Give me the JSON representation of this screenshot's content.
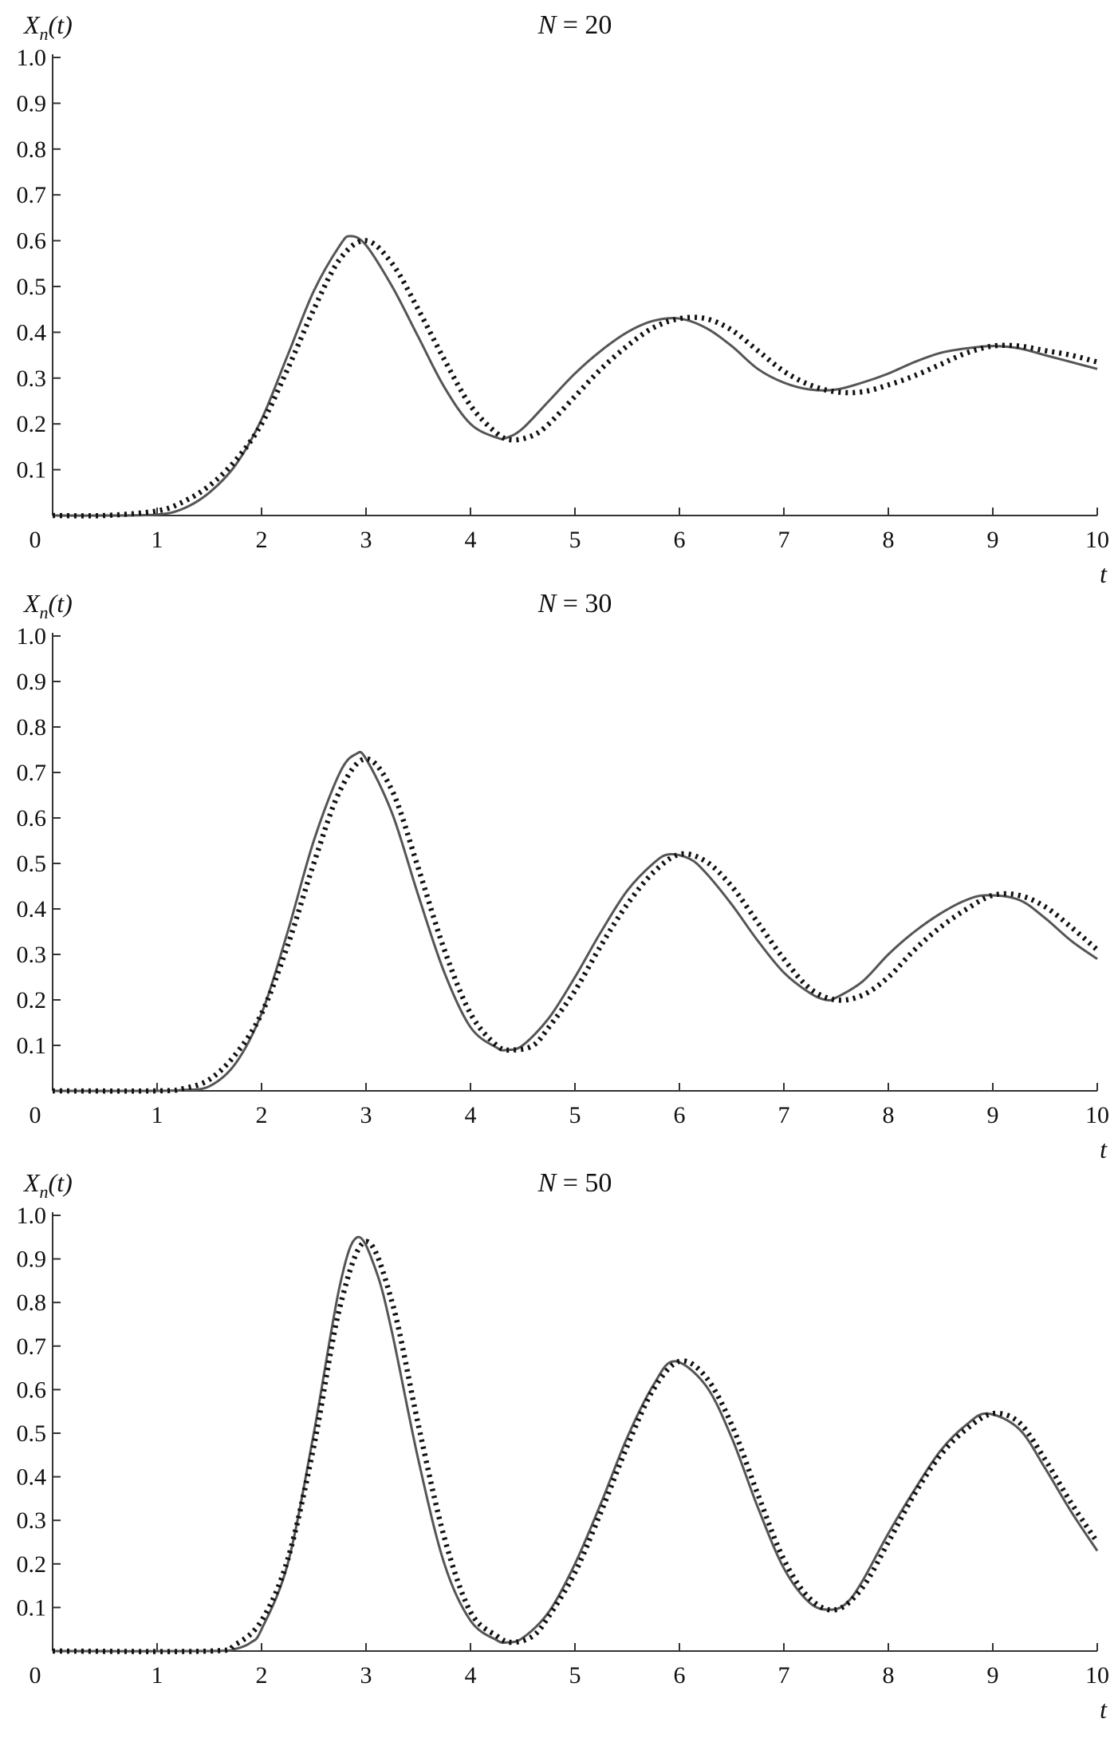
{
  "chart_data": [
    {
      "type": "line",
      "title_var": "N",
      "title_value": "= 20",
      "ylabel_main": "X",
      "ylabel_sub": "n",
      "ylabel_arg": "(t)",
      "xlabel": "t",
      "xlim": [
        0,
        10
      ],
      "ylim": [
        0,
        1.0
      ],
      "x_ticks": [
        "0",
        "1",
        "2",
        "3",
        "4",
        "5",
        "6",
        "7",
        "8",
        "9",
        "10"
      ],
      "y_ticks": [
        "0.1",
        "0.2",
        "0.3",
        "0.4",
        "0.5",
        "0.6",
        "0.7",
        "0.8",
        "0.9",
        "1.0"
      ],
      "grid": false,
      "series": [
        {
          "style": "solid",
          "x": [
            0,
            0.5,
            1,
            1.25,
            1.5,
            1.75,
            2,
            2.25,
            2.5,
            2.75,
            2.85,
            3,
            3.25,
            3.5,
            3.75,
            4,
            4.25,
            4.35,
            4.5,
            4.75,
            5,
            5.25,
            5.5,
            5.75,
            6,
            6.25,
            6.5,
            6.75,
            7,
            7.25,
            7.5,
            7.75,
            8,
            8.25,
            8.5,
            8.75,
            9,
            9.25,
            9.5,
            9.75,
            10
          ],
          "y": [
            0,
            0,
            0.002,
            0.015,
            0.05,
            0.11,
            0.21,
            0.35,
            0.49,
            0.59,
            0.61,
            0.59,
            0.5,
            0.39,
            0.28,
            0.2,
            0.17,
            0.17,
            0.19,
            0.25,
            0.31,
            0.36,
            0.4,
            0.425,
            0.43,
            0.41,
            0.37,
            0.32,
            0.29,
            0.275,
            0.275,
            0.29,
            0.31,
            0.335,
            0.355,
            0.365,
            0.37,
            0.365,
            0.35,
            0.335,
            0.32
          ]
        },
        {
          "style": "dotted",
          "x": [
            0,
            0.5,
            1,
            1.25,
            1.5,
            1.75,
            2,
            2.25,
            2.5,
            2.75,
            3,
            3.25,
            3.5,
            3.75,
            4,
            4.25,
            4.4,
            4.6,
            4.75,
            5,
            5.25,
            5.5,
            5.75,
            6,
            6.25,
            6.5,
            6.75,
            7,
            7.25,
            7.5,
            7.75,
            8,
            8.25,
            8.5,
            8.75,
            9,
            9.25,
            9.5,
            9.75,
            10
          ],
          "y": [
            0,
            0,
            0.01,
            0.03,
            0.065,
            0.12,
            0.2,
            0.32,
            0.45,
            0.56,
            0.6,
            0.55,
            0.45,
            0.34,
            0.24,
            0.18,
            0.165,
            0.175,
            0.2,
            0.26,
            0.32,
            0.37,
            0.41,
            0.43,
            0.43,
            0.405,
            0.36,
            0.315,
            0.285,
            0.27,
            0.27,
            0.285,
            0.305,
            0.33,
            0.355,
            0.37,
            0.37,
            0.36,
            0.35,
            0.335
          ]
        }
      ]
    },
    {
      "type": "line",
      "title_var": "N",
      "title_value": "= 30",
      "ylabel_main": "X",
      "ylabel_sub": "n",
      "ylabel_arg": "(t)",
      "xlabel": "t",
      "xlim": [
        0,
        10
      ],
      "ylim": [
        0,
        1.0
      ],
      "x_ticks": [
        "0",
        "1",
        "2",
        "3",
        "4",
        "5",
        "6",
        "7",
        "8",
        "9",
        "10"
      ],
      "y_ticks": [
        "0.1",
        "0.2",
        "0.3",
        "0.4",
        "0.5",
        "0.6",
        "0.7",
        "0.8",
        "0.9",
        "1.0"
      ],
      "grid": false,
      "series": [
        {
          "style": "solid",
          "x": [
            0,
            1,
            1.25,
            1.5,
            1.75,
            2,
            2.25,
            2.5,
            2.75,
            2.9,
            3,
            3.25,
            3.5,
            3.75,
            4,
            4.25,
            4.35,
            4.5,
            4.75,
            5,
            5.25,
            5.5,
            5.75,
            5.9,
            6.1,
            6.25,
            6.5,
            6.75,
            7,
            7.25,
            7.4,
            7.5,
            7.75,
            8,
            8.25,
            8.5,
            8.75,
            8.95,
            9.25,
            9.5,
            9.75,
            10
          ],
          "y": [
            0,
            0,
            0.002,
            0.01,
            0.06,
            0.17,
            0.35,
            0.55,
            0.7,
            0.74,
            0.73,
            0.61,
            0.43,
            0.26,
            0.14,
            0.095,
            0.09,
            0.1,
            0.16,
            0.25,
            0.35,
            0.44,
            0.5,
            0.52,
            0.51,
            0.48,
            0.41,
            0.33,
            0.26,
            0.215,
            0.2,
            0.205,
            0.24,
            0.3,
            0.35,
            0.39,
            0.42,
            0.43,
            0.42,
            0.38,
            0.33,
            0.29
          ]
        },
        {
          "style": "dotted",
          "x": [
            0,
            1,
            1.25,
            1.5,
            1.75,
            2,
            2.25,
            2.5,
            2.75,
            3,
            3.25,
            3.5,
            3.75,
            4,
            4.25,
            4.4,
            4.6,
            4.75,
            5,
            5.25,
            5.5,
            5.75,
            6,
            6.25,
            6.5,
            6.75,
            7,
            7.25,
            7.5,
            7.75,
            8,
            8.25,
            8.5,
            8.75,
            9,
            9.25,
            9.5,
            9.75,
            10
          ],
          "y": [
            0,
            0,
            0.005,
            0.025,
            0.08,
            0.17,
            0.32,
            0.5,
            0.66,
            0.73,
            0.66,
            0.49,
            0.31,
            0.17,
            0.1,
            0.09,
            0.1,
            0.14,
            0.22,
            0.32,
            0.41,
            0.48,
            0.52,
            0.505,
            0.45,
            0.37,
            0.29,
            0.225,
            0.2,
            0.21,
            0.25,
            0.31,
            0.36,
            0.4,
            0.43,
            0.43,
            0.405,
            0.36,
            0.31
          ]
        }
      ]
    },
    {
      "type": "line",
      "title_var": "N",
      "title_value": "= 50",
      "ylabel_main": "X",
      "ylabel_sub": "n",
      "ylabel_arg": "(t)",
      "xlabel": "t",
      "xlim": [
        0,
        10
      ],
      "ylim": [
        0,
        1.0
      ],
      "x_ticks": [
        "0",
        "1",
        "2",
        "3",
        "4",
        "5",
        "6",
        "7",
        "8",
        "9",
        "10"
      ],
      "y_ticks": [
        "0.1",
        "0.2",
        "0.3",
        "0.4",
        "0.5",
        "0.6",
        "0.7",
        "0.8",
        "0.9",
        "1.0"
      ],
      "grid": false,
      "series": [
        {
          "style": "solid",
          "x": [
            0,
            1.5,
            1.75,
            1.9,
            2,
            2.25,
            2.5,
            2.75,
            2.92,
            3.1,
            3.25,
            3.5,
            3.75,
            4,
            4.25,
            4.35,
            4.5,
            4.75,
            5,
            5.25,
            5.5,
            5.75,
            5.95,
            6.25,
            6.5,
            6.75,
            7,
            7.25,
            7.45,
            7.6,
            7.75,
            8,
            8.25,
            8.5,
            8.75,
            8.95,
            9.25,
            9.5,
            9.75,
            10
          ],
          "y": [
            0,
            0,
            0.005,
            0.02,
            0.05,
            0.2,
            0.5,
            0.84,
            0.95,
            0.87,
            0.73,
            0.44,
            0.2,
            0.07,
            0.025,
            0.02,
            0.03,
            0.09,
            0.2,
            0.34,
            0.49,
            0.61,
            0.665,
            0.61,
            0.49,
            0.33,
            0.19,
            0.11,
            0.095,
            0.11,
            0.16,
            0.27,
            0.37,
            0.46,
            0.52,
            0.545,
            0.51,
            0.42,
            0.32,
            0.23
          ]
        },
        {
          "style": "dotted",
          "x": [
            0,
            1.5,
            1.75,
            2,
            2.25,
            2.5,
            2.75,
            3,
            3.25,
            3.5,
            3.75,
            4,
            4.25,
            4.4,
            4.6,
            4.75,
            5,
            5.25,
            5.5,
            5.75,
            6,
            6.25,
            6.5,
            6.75,
            7,
            7.25,
            7.5,
            7.75,
            8,
            8.25,
            8.5,
            8.75,
            9,
            9.25,
            9.5,
            9.75,
            10
          ],
          "y": [
            0,
            0,
            0.015,
            0.07,
            0.21,
            0.47,
            0.79,
            0.94,
            0.8,
            0.52,
            0.26,
            0.09,
            0.035,
            0.02,
            0.035,
            0.08,
            0.18,
            0.32,
            0.47,
            0.6,
            0.665,
            0.63,
            0.52,
            0.36,
            0.21,
            0.12,
            0.095,
            0.145,
            0.25,
            0.36,
            0.45,
            0.51,
            0.545,
            0.525,
            0.44,
            0.34,
            0.25
          ]
        }
      ]
    }
  ]
}
